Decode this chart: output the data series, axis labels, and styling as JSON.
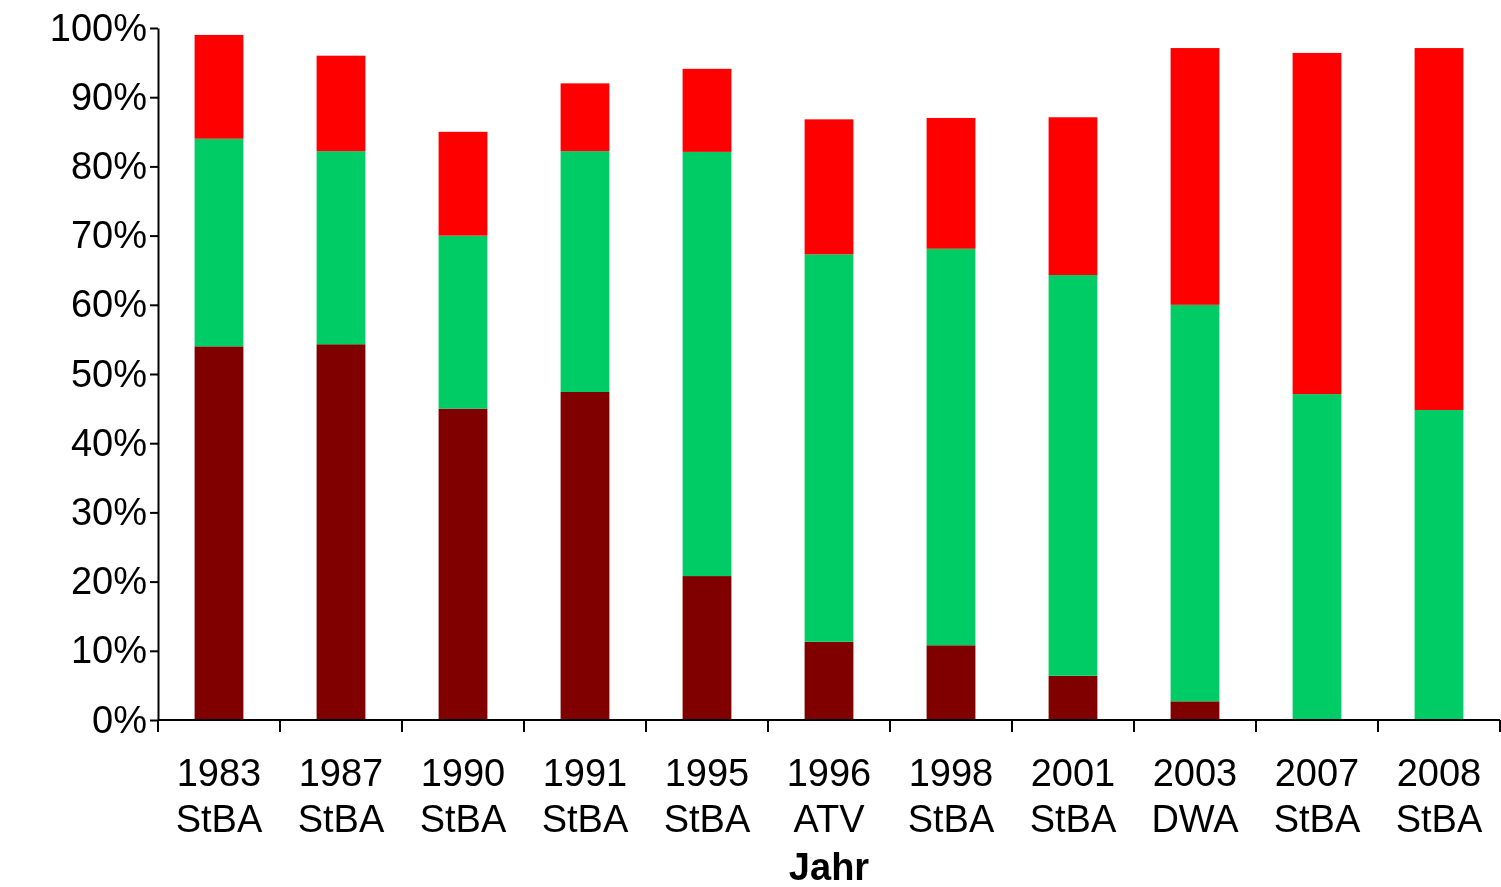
{
  "chart_data": {
    "type": "bar",
    "stacked": true,
    "xlabel": "Jahr",
    "categories": [
      "1983\nStBA",
      "1987\nStBA",
      "1990\nStBA",
      "1991\nStBA",
      "1995\nStBA",
      "1996\nATV",
      "1998\nStBA",
      "2001\nStBA",
      "2003\nDWA",
      "2007\nStBA",
      "2008\nStBA"
    ],
    "series": [
      {
        "color": "#800000",
        "values": [
          54,
          54.3,
          45,
          47.4,
          20.8,
          11.3,
          10.8,
          6.4,
          2.7,
          0,
          0
        ]
      },
      {
        "color": "#00cc66",
        "values": [
          30,
          27.9,
          25,
          34.8,
          61.3,
          56,
          57.3,
          57.9,
          57.3,
          47.1,
          44.8
        ]
      },
      {
        "color": "#ff0000",
        "values": [
          15,
          13.8,
          15,
          9.8,
          12,
          19.5,
          18.9,
          22.8,
          37.1,
          49.3,
          52.3
        ]
      }
    ],
    "ylim": [
      0,
      100
    ],
    "yticks": [
      {
        "value": 0,
        "label": "0%"
      },
      {
        "value": 10,
        "label": "10%"
      },
      {
        "value": 20,
        "label": "20%"
      },
      {
        "value": 30,
        "label": "30%"
      },
      {
        "value": 40,
        "label": "40%"
      },
      {
        "value": 50,
        "label": "50%"
      },
      {
        "value": 60,
        "label": "60%"
      },
      {
        "value": 70,
        "label": "70%"
      },
      {
        "value": 80,
        "label": "80%"
      },
      {
        "value": 90,
        "label": "90%"
      },
      {
        "value": 100,
        "label": "100%"
      }
    ],
    "grid": false,
    "legend": false
  }
}
